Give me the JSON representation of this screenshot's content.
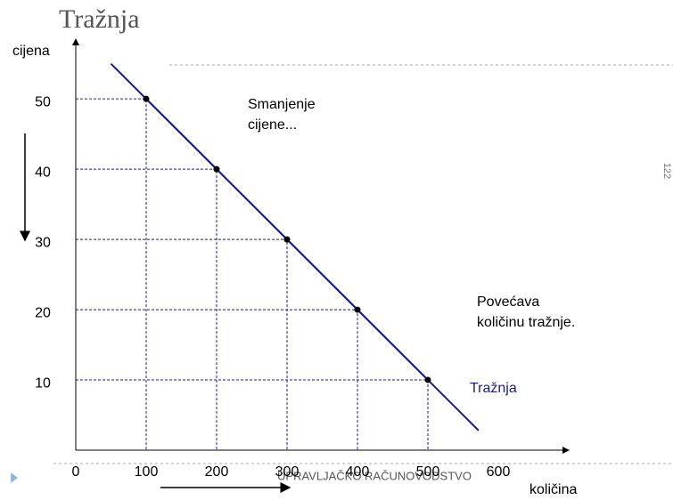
{
  "chart_data": {
    "type": "line",
    "title": "Tražnja",
    "x_label": "količina",
    "y_label": "cijena",
    "x": [
      100,
      200,
      300,
      400,
      500
    ],
    "series": [
      {
        "name": "Tražnja",
        "color": "#1c1c8a",
        "values": [
          50,
          40,
          30,
          20,
          10
        ]
      }
    ],
    "xlim": [
      0,
      700
    ],
    "ylim": [
      0,
      58
    ],
    "xticks": [
      0,
      100,
      200,
      300,
      400,
      500,
      600
    ],
    "yticks": [
      10,
      20,
      30,
      40,
      50
    ],
    "annotations": [
      "Smanjenje",
      "cijene...",
      "Povećava",
      "količinu tražnje."
    ],
    "footer": "UPRAVLJAČKO RAČUNOVODSTVO",
    "page_number": "122"
  }
}
